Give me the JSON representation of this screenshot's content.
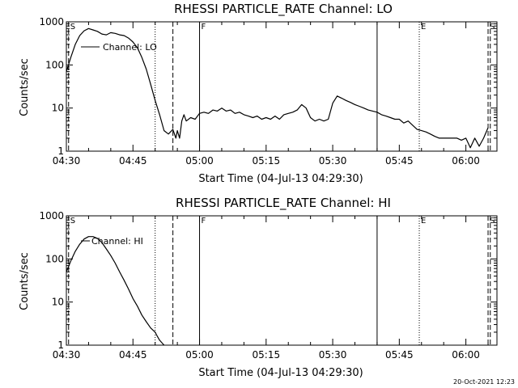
{
  "chart_data": [
    {
      "type": "line",
      "title": "RHESSI PARTICLE_RATE Channel: LO",
      "xlabel": "Start Time (04-Jul-13 04:29:30)",
      "ylabel": "Counts/sec",
      "xlim": [
        "04:30",
        "06:07"
      ],
      "ylim": [
        1,
        1000
      ],
      "yscale": "log",
      "xticks": [
        "04:30",
        "04:45",
        "05:00",
        "05:15",
        "05:30",
        "05:45",
        "06:00"
      ],
      "yticks": [
        "1",
        "10",
        "100",
        "1000"
      ],
      "legend": {
        "label": "Channel: LO",
        "placement": "top-left"
      },
      "markers": [
        {
          "label": "S",
          "time": "04:30:30",
          "style": "dashed"
        },
        {
          "label": "",
          "time": "04:50:00",
          "style": "dotted"
        },
        {
          "label": "",
          "time": "04:54:00",
          "style": "dashed"
        },
        {
          "label": "F",
          "time": "05:00:00",
          "style": "solid"
        },
        {
          "label": "",
          "time": "05:40:00",
          "style": "solid"
        },
        {
          "label": "E",
          "time": "05:49:30",
          "style": "dotted"
        },
        {
          "label": "S",
          "time": "06:05:00",
          "style": "dashed"
        },
        {
          "label": "",
          "time": "06:05:30",
          "style": "dashed"
        }
      ],
      "series": [
        {
          "name": "Channel: LO",
          "points": [
            [
              "04:30",
              70
            ],
            [
              "04:31",
              150
            ],
            [
              "04:32",
              300
            ],
            [
              "04:33",
              480
            ],
            [
              "04:34",
              620
            ],
            [
              "04:35",
              700
            ],
            [
              "04:36",
              650
            ],
            [
              "04:37",
              600
            ],
            [
              "04:38",
              520
            ],
            [
              "04:39",
              500
            ],
            [
              "04:40",
              560
            ],
            [
              "04:41",
              540
            ],
            [
              "04:42",
              500
            ],
            [
              "04:43",
              480
            ],
            [
              "04:44",
              420
            ],
            [
              "04:45",
              340
            ],
            [
              "04:46",
              250
            ],
            [
              "04:47",
              150
            ],
            [
              "04:48",
              80
            ],
            [
              "04:49",
              35
            ],
            [
              "04:50",
              15
            ],
            [
              "04:51",
              7
            ],
            [
              "04:52",
              3
            ],
            [
              "04:53",
              2.5
            ],
            [
              "04:54",
              3.2
            ],
            [
              "04:54:40",
              2
            ],
            [
              "04:55",
              3
            ],
            [
              "04:55:30",
              2
            ],
            [
              "04:56",
              5
            ],
            [
              "04:56:30",
              7
            ],
            [
              "04:57",
              5
            ],
            [
              "04:58",
              6
            ],
            [
              "04:59",
              5.5
            ],
            [
              "05:00",
              7.5
            ],
            [
              "05:01",
              8
            ],
            [
              "05:02",
              7.5
            ],
            [
              "05:03",
              9
            ],
            [
              "05:04",
              8.5
            ],
            [
              "05:05",
              10
            ],
            [
              "05:06",
              8.5
            ],
            [
              "05:07",
              9
            ],
            [
              "05:08",
              7.5
            ],
            [
              "05:09",
              8
            ],
            [
              "05:10",
              7
            ],
            [
              "05:11",
              6.5
            ],
            [
              "05:12",
              6
            ],
            [
              "05:13",
              6.5
            ],
            [
              "05:14",
              5.5
            ],
            [
              "05:15",
              6
            ],
            [
              "05:16",
              5.5
            ],
            [
              "05:17",
              6.5
            ],
            [
              "05:18",
              5.5
            ],
            [
              "05:19",
              7
            ],
            [
              "05:20",
              7.5
            ],
            [
              "05:21",
              8
            ],
            [
              "05:22",
              9
            ],
            [
              "05:23",
              12
            ],
            [
              "05:24",
              10
            ],
            [
              "05:25",
              6
            ],
            [
              "05:26",
              5
            ],
            [
              "05:27",
              5.5
            ],
            [
              "05:28",
              5
            ],
            [
              "05:29",
              5.5
            ],
            [
              "05:30",
              13
            ],
            [
              "05:31",
              19
            ],
            [
              "05:32",
              17
            ],
            [
              "05:33",
              15
            ],
            [
              "05:34",
              13.5
            ],
            [
              "05:35",
              12
            ],
            [
              "05:36",
              11
            ],
            [
              "05:37",
              10
            ],
            [
              "05:38",
              9
            ],
            [
              "05:39",
              8.5
            ],
            [
              "05:40",
              8
            ],
            [
              "05:41",
              7
            ],
            [
              "05:42",
              6.5
            ],
            [
              "05:43",
              6
            ],
            [
              "05:44",
              5.5
            ],
            [
              "05:45",
              5.5
            ],
            [
              "05:46",
              4.5
            ],
            [
              "05:47",
              5
            ],
            [
              "05:48",
              4
            ],
            [
              "05:49",
              3.2
            ],
            [
              "05:50",
              3
            ],
            [
              "05:51",
              2.8
            ],
            [
              "05:52",
              2.5
            ],
            [
              "05:53",
              2.2
            ],
            [
              "05:54",
              2
            ],
            [
              "05:55",
              2
            ],
            [
              "05:56",
              2
            ],
            [
              "05:57",
              2
            ],
            [
              "05:58",
              2
            ],
            [
              "05:59",
              1.8
            ],
            [
              "06:00",
              2
            ],
            [
              "06:01",
              1.2
            ],
            [
              "06:02",
              2
            ],
            [
              "06:03",
              1.3
            ],
            [
              "06:04",
              2
            ],
            [
              "06:05",
              3.5
            ]
          ]
        }
      ]
    },
    {
      "type": "line",
      "title": "RHESSI PARTICLE_RATE Channel: HI",
      "xlabel": "Start Time (04-Jul-13 04:29:30)",
      "ylabel": "Counts/sec",
      "xlim": [
        "04:30",
        "06:07"
      ],
      "ylim": [
        1,
        1000
      ],
      "yscale": "log",
      "xticks": [
        "04:30",
        "04:45",
        "05:00",
        "05:15",
        "05:30",
        "05:45",
        "06:00"
      ],
      "yticks": [
        "1",
        "10",
        "100",
        "1000"
      ],
      "legend": {
        "label": "Channel: HI",
        "placement": "top-left"
      },
      "markers": [
        {
          "label": "S",
          "time": "04:30:30",
          "style": "dashed"
        },
        {
          "label": "",
          "time": "04:50:00",
          "style": "dotted"
        },
        {
          "label": "",
          "time": "04:54:00",
          "style": "dashed"
        },
        {
          "label": "F",
          "time": "05:00:00",
          "style": "solid"
        },
        {
          "label": "",
          "time": "05:40:00",
          "style": "solid"
        },
        {
          "label": "E",
          "time": "05:49:30",
          "style": "dotted"
        },
        {
          "label": "S",
          "time": "06:05:00",
          "style": "dashed"
        },
        {
          "label": "",
          "time": "06:05:30",
          "style": "dashed"
        }
      ],
      "series": [
        {
          "name": "Channel: HI",
          "points": [
            [
              "04:30",
              50
            ],
            [
              "04:31",
              90
            ],
            [
              "04:32",
              150
            ],
            [
              "04:33",
              220
            ],
            [
              "04:34",
              290
            ],
            [
              "04:35",
              330
            ],
            [
              "04:36",
              330
            ],
            [
              "04:37",
              300
            ],
            [
              "04:38",
              240
            ],
            [
              "04:39",
              170
            ],
            [
              "04:40",
              120
            ],
            [
              "04:41",
              80
            ],
            [
              "04:42",
              50
            ],
            [
              "04:43",
              32
            ],
            [
              "04:44",
              20
            ],
            [
              "04:45",
              12
            ],
            [
              "04:46",
              8
            ],
            [
              "04:47",
              5
            ],
            [
              "04:48",
              3.5
            ],
            [
              "04:49",
              2.5
            ],
            [
              "04:50",
              2
            ],
            [
              "04:50:30",
              1.6
            ],
            [
              "04:51",
              1.3
            ],
            [
              "04:52",
              1
            ]
          ]
        }
      ]
    }
  ],
  "footer": {
    "timestamp": "20-Oct-2021 12:23"
  }
}
